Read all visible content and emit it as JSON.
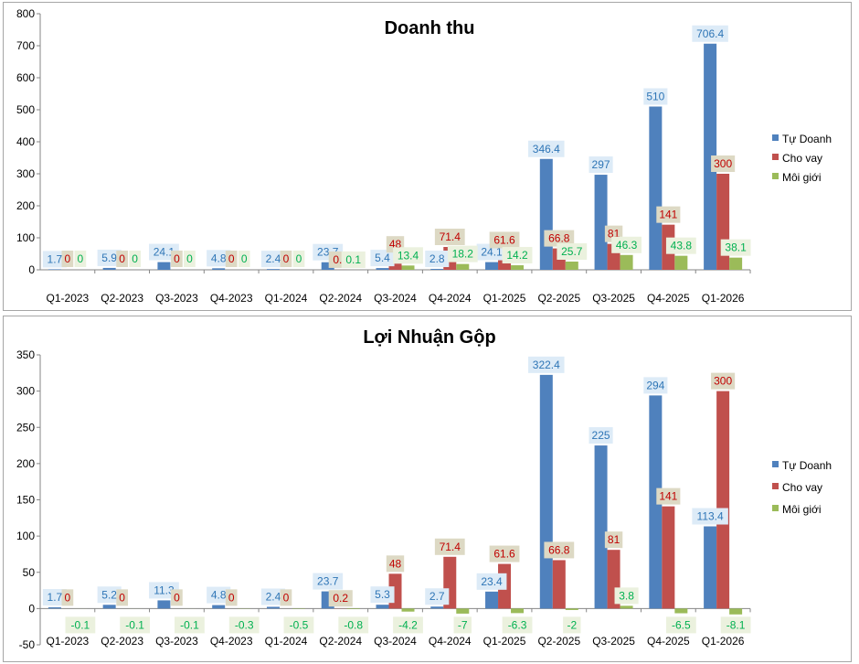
{
  "chart_data": [
    {
      "type": "bar",
      "title": "Doanh thu",
      "categories": [
        "Q1-2023",
        "Q2-2023",
        "Q3-2023",
        "Q4-2023",
        "Q1-2024",
        "Q2-2024",
        "Q3-2024",
        "Q4-2024",
        "Q1-2025",
        "Q2-2025",
        "Q3-2025",
        "Q4-2025",
        "Q1-2026"
      ],
      "series": [
        {
          "name": "Tự Doanh",
          "color": "#4f81bd",
          "label_color": "#2e75b6",
          "label_bg": "#ddebf7",
          "values": [
            1.7,
            5.9,
            24.1,
            4.8,
            2.4,
            23.7,
            5.4,
            2.8,
            24.1,
            346.4,
            297,
            510,
            706.4
          ],
          "labels": [
            "1.7",
            "5.9",
            "24.1",
            "4.8",
            "2.4",
            "23.7",
            "5.4",
            "2.8",
            "24.1",
            "346.4",
            "297",
            "510",
            "706.4"
          ]
        },
        {
          "name": "Cho vay",
          "color": "#c0504d",
          "label_color": "#c00000",
          "label_bg": "#ddd9c4",
          "values": [
            0,
            0,
            0,
            0,
            0,
            0.2,
            48,
            71.4,
            61.6,
            66.8,
            81,
            141,
            300
          ],
          "labels": [
            "0",
            "0",
            "0",
            "0",
            "0",
            "0.2",
            "48",
            "71.4",
            "61.6",
            "66.8",
            "81",
            "141",
            "300"
          ]
        },
        {
          "name": "Môi giới",
          "color": "#9bbb59",
          "label_color": "#00b050",
          "label_bg": "#ebf1de",
          "values": [
            0,
            0,
            0,
            0,
            0,
            0.1,
            13.4,
            18.2,
            14.2,
            25.7,
            46.3,
            43.8,
            38.1
          ],
          "labels": [
            "0",
            "0",
            "0",
            "0",
            "0",
            "0.1",
            "13.4",
            "18.2",
            "14.2",
            "25.7",
            "46.3",
            "43.8",
            "38.1"
          ]
        }
      ],
      "ylim": [
        0,
        800
      ],
      "yticks": [
        "0",
        "100",
        "200",
        "300",
        "400",
        "500",
        "600",
        "700",
        "800"
      ],
      "xlabel": "",
      "ylabel": "",
      "grid": false,
      "legend_position": "right"
    },
    {
      "type": "bar",
      "title": "Lợi Nhuận Gộp",
      "categories": [
        "Q1-2023",
        "Q2-2023",
        "Q3-2023",
        "Q4-2023",
        "Q1-2024",
        "Q2-2024",
        "Q3-2024",
        "Q4-2024",
        "Q1-2025",
        "Q2-2025",
        "Q3-2025",
        "Q4-2025",
        "Q1-2026"
      ],
      "series": [
        {
          "name": "Tự Doanh",
          "color": "#4f81bd",
          "label_color": "#2e75b6",
          "label_bg": "#ddebf7",
          "values": [
            1.7,
            5.2,
            11.3,
            4.8,
            2.4,
            23.7,
            5.3,
            2.7,
            23.4,
            322.4,
            225,
            294,
            113.4
          ],
          "labels": [
            "1.7",
            "5.2",
            "11.3",
            "4.8",
            "2.4",
            "23.7",
            "5.3",
            "2.7",
            "23.4",
            "322.4",
            "225",
            "294",
            "113.4"
          ]
        },
        {
          "name": "Cho vay",
          "color": "#c0504d",
          "label_color": "#c00000",
          "label_bg": "#ddd9c4",
          "values": [
            0,
            0,
            0,
            0,
            0,
            0.2,
            48,
            71.4,
            61.6,
            66.8,
            81,
            141,
            300
          ],
          "labels": [
            "0",
            "0",
            "0",
            "0",
            "0",
            "0.2",
            "48",
            "71.4",
            "61.6",
            "66.8",
            "81",
            "141",
            "300"
          ]
        },
        {
          "name": "Môi giới",
          "color": "#9bbb59",
          "label_color": "#00b050",
          "label_bg": "#ebf1de",
          "values": [
            -0.1,
            -0.1,
            -0.1,
            -0.3,
            -0.5,
            -0.8,
            -4.2,
            -7,
            -6.3,
            -2,
            3.8,
            -6.5,
            -8.1
          ],
          "labels": [
            "-0.1",
            "-0.1",
            "-0.1",
            "-0.3",
            "-0.5",
            "-0.8",
            "-4.2",
            "-7",
            "-6.3",
            "-2",
            "3.8",
            "-6.5",
            "-8.1"
          ]
        }
      ],
      "ylim": [
        -50,
        350
      ],
      "yticks": [
        "-50",
        "0",
        "50",
        "100",
        "150",
        "200",
        "250",
        "300",
        "350"
      ],
      "xlabel": "",
      "ylabel": "",
      "grid": false,
      "legend_position": "right"
    }
  ]
}
